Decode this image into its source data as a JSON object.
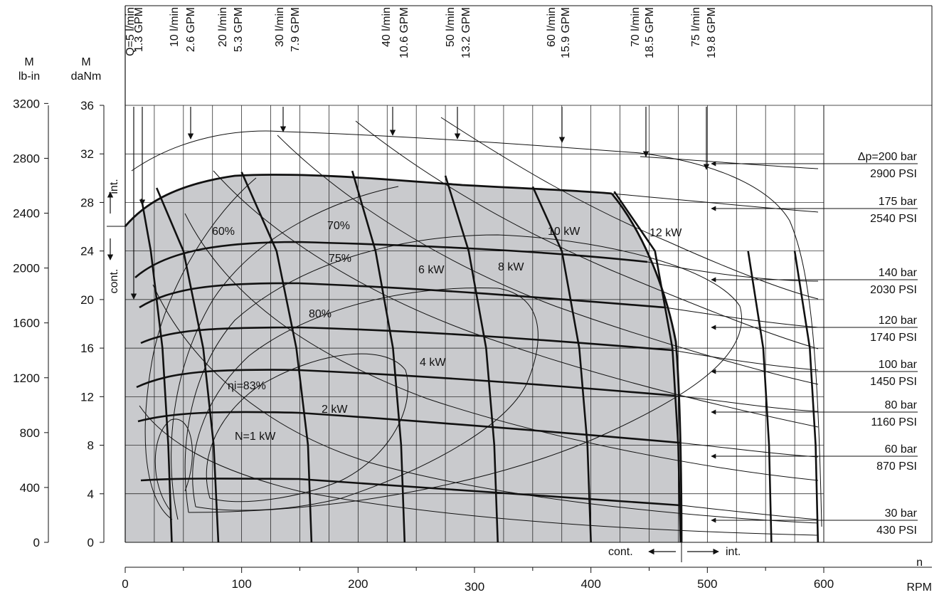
{
  "chart_data": {
    "type": "line",
    "title": "",
    "left_axis_lbin": {
      "label_top": "M",
      "label_bottom": "lb-in",
      "ticks": [
        0,
        400,
        800,
        1200,
        1600,
        2000,
        2400,
        2800,
        3200
      ]
    },
    "left_axis_danm": {
      "label_top": "M",
      "label_bottom": "daNm",
      "ticks": [
        0,
        4,
        8,
        12,
        16,
        20,
        24,
        28,
        32,
        36
      ],
      "range": [
        0,
        36
      ]
    },
    "x_axis": {
      "label_top": "n",
      "label_bottom": "RPM",
      "ticks": [
        0,
        100,
        200,
        300,
        400,
        500,
        600
      ],
      "range": [
        0,
        600
      ]
    },
    "grid": true,
    "int_label": "int.",
    "cont_label": "cont.",
    "flow_lines": [
      {
        "top": "Q=5 l/min",
        "bottom": "1.3 GPM",
        "values": [
          [
            40,
            0
          ],
          [
            37,
            8
          ],
          [
            32,
            16
          ],
          [
            22,
            24
          ],
          [
            14,
            28.3
          ]
        ]
      },
      {
        "top": "10 l/min",
        "bottom": "2.6 GPM",
        "values": [
          [
            80,
            0
          ],
          [
            76,
            8
          ],
          [
            67,
            16
          ],
          [
            50,
            24
          ],
          [
            27,
            29.2
          ]
        ]
      },
      {
        "top": "20 l/min",
        "bottom": "5.3 GPM",
        "values": [
          [
            160,
            0
          ],
          [
            157,
            8
          ],
          [
            147,
            16
          ],
          [
            130,
            24
          ],
          [
            100,
            30.5
          ]
        ]
      },
      {
        "top": "30 l/min",
        "bottom": "7.9 GPM",
        "values": [
          [
            240,
            0
          ],
          [
            237,
            8
          ],
          [
            230,
            16
          ],
          [
            215,
            24
          ],
          [
            195,
            30.6
          ]
        ]
      },
      {
        "top": "40 l/min",
        "bottom": "10.6 GPM",
        "values": [
          [
            320,
            0
          ],
          [
            317,
            8
          ],
          [
            310,
            16
          ],
          [
            295,
            24
          ],
          [
            275,
            30.2
          ]
        ]
      },
      {
        "top": "50 l/min",
        "bottom": "13.2 GPM",
        "values": [
          [
            400,
            0
          ],
          [
            397,
            8
          ],
          [
            390,
            16
          ],
          [
            375,
            24
          ],
          [
            350,
            29.3
          ]
        ]
      },
      {
        "top": "60 l/min",
        "bottom": "15.9 GPM",
        "values": [
          [
            477,
            0
          ],
          [
            475,
            8
          ],
          [
            470,
            16
          ],
          [
            455,
            24
          ],
          [
            420,
            28.9
          ]
        ]
      },
      {
        "top": "70 l/min",
        "bottom": "18.5 GPM",
        "values": [
          [
            555,
            0
          ],
          [
            553,
            8
          ],
          [
            548,
            16
          ],
          [
            535,
            24
          ]
        ]
      },
      {
        "top": "75 l/min",
        "bottom": "19.8 GPM",
        "values": [
          [
            595,
            0
          ],
          [
            593,
            8
          ],
          [
            588,
            16
          ],
          [
            575,
            24
          ]
        ]
      }
    ],
    "pressure_lines": [
      {
        "label": "Δp=200 bar",
        "psi": "2900 PSI",
        "end_value": 31.5
      },
      {
        "label": "175 bar",
        "psi": "2540 PSI",
        "end_value": 28
      },
      {
        "label": "140 bar",
        "psi": "2030 PSI",
        "end_value": 21.8
      },
      {
        "label": "120 bar",
        "psi": "1740 PSI",
        "end_value": 18.2
      },
      {
        "label": "100 bar",
        "psi": "1450 PSI",
        "end_value": 14.6
      },
      {
        "label": "80 bar",
        "psi": "1160 PSI",
        "end_value": 11
      },
      {
        "label": "60 bar",
        "psi": "870 PSI",
        "end_value": 7.5
      },
      {
        "label": "30 bar",
        "psi": "430 PSI",
        "end_value": 1.8
      }
    ],
    "efficiency_labels": [
      "60%",
      "70%",
      "75%",
      "80%",
      "ηi=83%"
    ],
    "power_labels": [
      "N=1 kW",
      "2 kW",
      "4 kW",
      "6 kW",
      "8 kW",
      "10 kW",
      "12 kW"
    ],
    "cont_int_boundary_rpm": 477,
    "cont_int_boundary_torque": 25.6
  }
}
